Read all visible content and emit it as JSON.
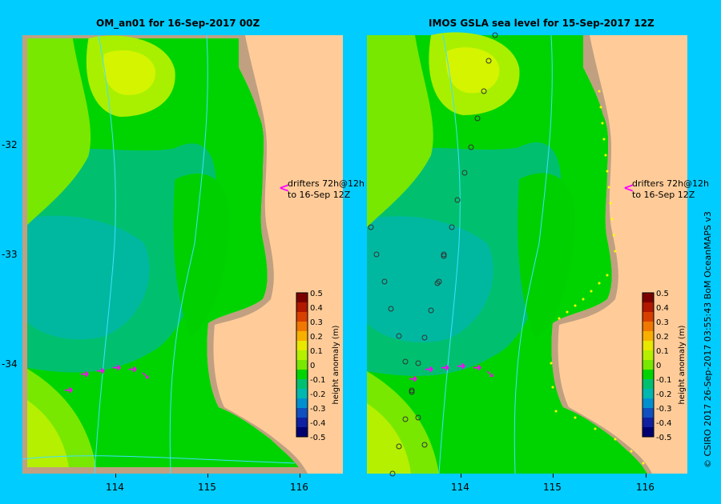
{
  "left_panel": {
    "title": "OM_an01  for 16-Sep-2017 00Z"
  },
  "right_panel": {
    "title": "IMOS  GSLA sea level   for 15-Sep-2017 12Z"
  },
  "annotation": {
    "line1": "drifters 72h@12h",
    "line2": "to 16-Sep 12Z"
  },
  "colorbar": {
    "label": "height anomaly  (m)",
    "ticks": [
      "0.5",
      "0.4",
      "0.3",
      "0.2",
      "0.1",
      "0",
      "-0.1",
      "-0.2",
      "-0.3",
      "-0.4",
      "-0.5"
    ],
    "colors": [
      "#7a0000",
      "#b01800",
      "#d84000",
      "#f07800",
      "#f8b000",
      "#e8e800",
      "#b4f000",
      "#78e800",
      "#00d400",
      "#00c070",
      "#00b8b0",
      "#0090d0",
      "#1050c0",
      "#1020a0",
      "#000070"
    ]
  },
  "axes": {
    "lat_labels": [
      "-32",
      "-33",
      "-34"
    ],
    "lon_labels": [
      "114",
      "115",
      "116"
    ]
  },
  "credit": "© CSIRO 2017    26-Sep-2017 03:55:43 BoM OceanMAPS v3",
  "colors": {
    "background": "#00ccff",
    "land": "#ffcc99",
    "coast": "#c0a080",
    "drifter": "#ff00ff"
  }
}
